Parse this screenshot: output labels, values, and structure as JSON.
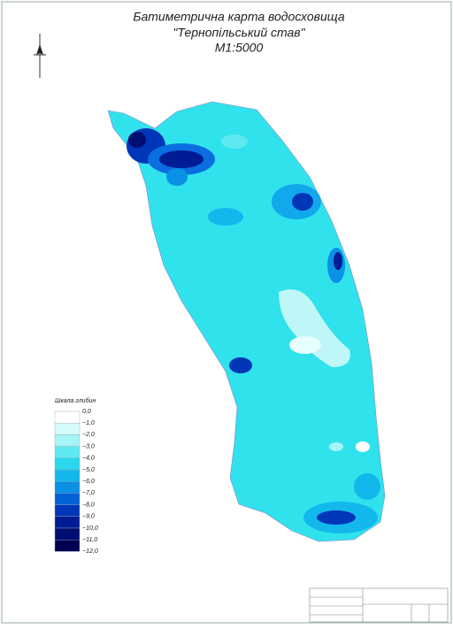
{
  "title": {
    "line1": "Батиметрична карта водосховища",
    "line2": "\"Тернопільський став\"",
    "line3": "М1:5000"
  },
  "legend": {
    "title": "Шкала глибин",
    "labels": [
      "0,0",
      "−1,0",
      "−2,0",
      "−3,0",
      "−4,0",
      "−5,0",
      "−6,0",
      "−7,0",
      "−8,0",
      "−9,0",
      "−10,0",
      "−11,0",
      "−12,0"
    ],
    "colors": [
      "#ffffff",
      "#d6fbfb",
      "#a6f4f6",
      "#5ee9f0",
      "#2ad8ee",
      "#12b8ec",
      "#0a90e4",
      "#0062d6",
      "#0036b8",
      "#001c94",
      "#000e74",
      "#000052"
    ]
  }
}
